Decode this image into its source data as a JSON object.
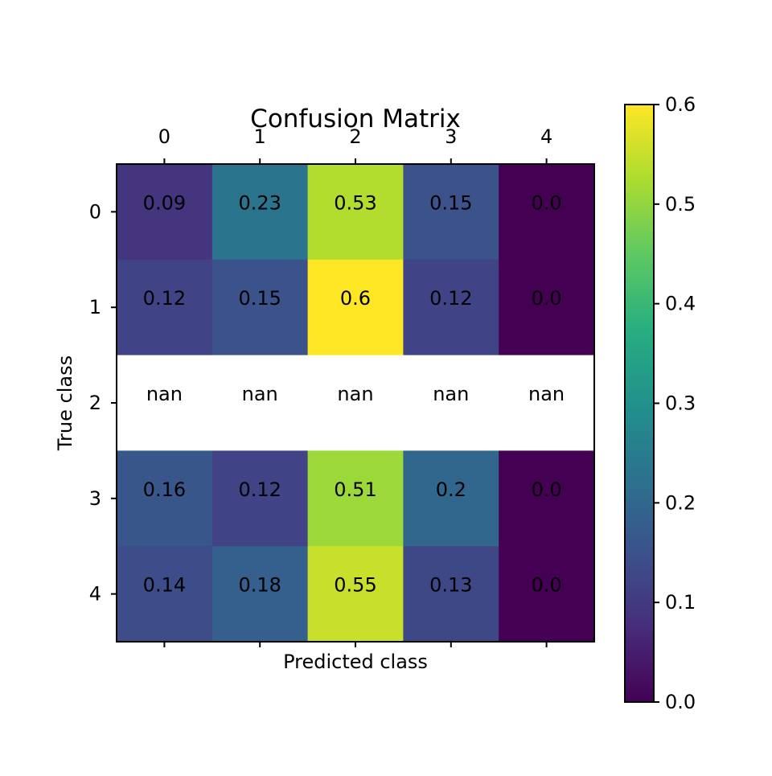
{
  "chart_data": {
    "type": "heatmap",
    "title": "Confusion Matrix",
    "xlabel": "Predicted class",
    "ylabel": "True class",
    "x_categories": [
      "0",
      "1",
      "2",
      "3",
      "4"
    ],
    "y_categories": [
      "0",
      "1",
      "2",
      "3",
      "4"
    ],
    "values": [
      [
        0.09,
        0.23,
        0.53,
        0.15,
        0.0
      ],
      [
        0.12,
        0.15,
        0.6,
        0.12,
        0.0
      ],
      [
        null,
        null,
        null,
        null,
        null
      ],
      [
        0.16,
        0.12,
        0.51,
        0.2,
        0.0
      ],
      [
        0.14,
        0.18,
        0.55,
        0.13,
        0.0
      ]
    ],
    "cell_labels": [
      [
        "0.09",
        "0.23",
        "0.53",
        "0.15",
        "0.0"
      ],
      [
        "0.12",
        "0.15",
        "0.6",
        "0.12",
        "0.0"
      ],
      [
        "nan",
        "nan",
        "nan",
        "nan",
        "nan"
      ],
      [
        "0.16",
        "0.12",
        "0.51",
        "0.2",
        "0.0"
      ],
      [
        "0.14",
        "0.18",
        "0.55",
        "0.13",
        "0.0"
      ]
    ],
    "colorbar": {
      "colormap": "viridis",
      "range": [
        0.0,
        0.6
      ],
      "ticks": [
        "0.0",
        "0.1",
        "0.2",
        "0.3",
        "0.4",
        "0.5",
        "0.6"
      ]
    },
    "nan_color": "#ffffff"
  }
}
